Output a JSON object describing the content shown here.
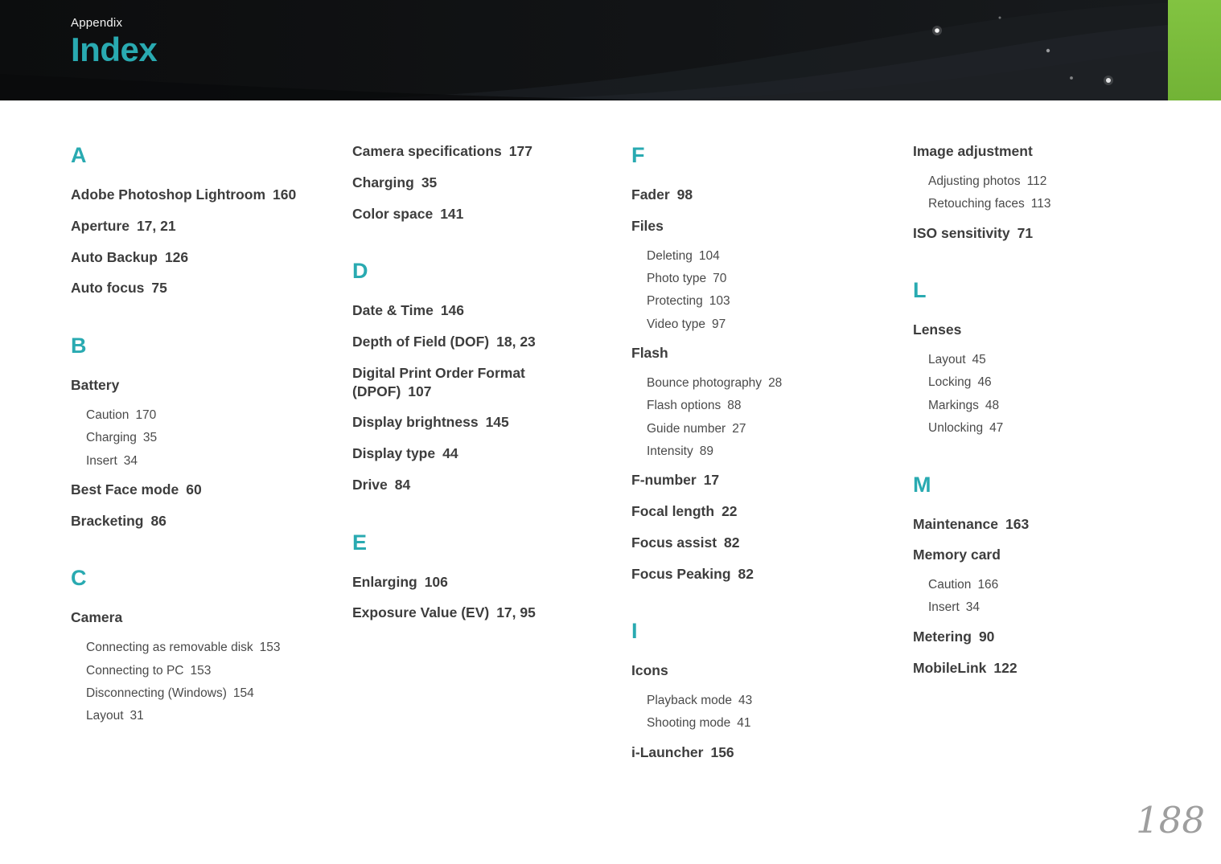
{
  "theme": {
    "accent_color": "#29aab1",
    "green_block_color": "#82c341",
    "header_background": "#101113",
    "bold_entry_color": "#3d3d3d",
    "sub_entry_color": "#4a4a4a",
    "page_number_color": "#9e9e9e"
  },
  "header": {
    "breadcrumb": "Appendix",
    "title": "Index"
  },
  "page_number": "188",
  "columns": [
    {
      "blocks": [
        {
          "letter": "A",
          "entries": [
            {
              "label": "Adobe Photoshop Lightroom",
              "pages": "160",
              "style": "bold"
            },
            {
              "label": "Aperture",
              "pages": "17, 21",
              "style": "bold"
            },
            {
              "label": "Auto Backup",
              "pages": "126",
              "style": "bold"
            },
            {
              "label": "Auto focus",
              "pages": "75",
              "style": "bold"
            }
          ]
        },
        {
          "letter": "B",
          "entries": [
            {
              "label": "Battery",
              "pages": "",
              "style": "bold"
            },
            {
              "label": "Caution",
              "pages": "170",
              "style": "sub"
            },
            {
              "label": "Charging",
              "pages": "35",
              "style": "sub"
            },
            {
              "label": "Insert",
              "pages": "34",
              "style": "sub"
            },
            {
              "label": "Best Face mode",
              "pages": "60",
              "style": "bold"
            },
            {
              "label": "Bracketing",
              "pages": "86",
              "style": "bold"
            }
          ]
        },
        {
          "letter": "C",
          "entries": [
            {
              "label": "Camera",
              "pages": "",
              "style": "bold"
            },
            {
              "label": "Connecting as removable disk",
              "pages": "153",
              "style": "sub"
            },
            {
              "label": "Connecting to PC",
              "pages": "153",
              "style": "sub"
            },
            {
              "label": "Disconnecting (Windows)",
              "pages": "154",
              "style": "sub"
            },
            {
              "label": "Layout",
              "pages": "31",
              "style": "sub"
            }
          ]
        }
      ]
    },
    {
      "blocks": [
        {
          "letter": "",
          "entries": [
            {
              "label": "Camera specifications",
              "pages": "177",
              "style": "bold"
            },
            {
              "label": "Charging",
              "pages": "35",
              "style": "bold"
            },
            {
              "label": "Color space",
              "pages": "141",
              "style": "bold"
            }
          ]
        },
        {
          "letter": "D",
          "entries": [
            {
              "label": "Date & Time",
              "pages": "146",
              "style": "bold"
            },
            {
              "label": "Depth of Field (DOF)",
              "pages": "18, 23",
              "style": "bold"
            },
            {
              "label": "Digital Print Order Format (DPOF)",
              "pages": "107",
              "style": "bold"
            },
            {
              "label": "Display brightness",
              "pages": "145",
              "style": "bold"
            },
            {
              "label": "Display type",
              "pages": "44",
              "style": "bold"
            },
            {
              "label": "Drive",
              "pages": "84",
              "style": "bold"
            }
          ]
        },
        {
          "letter": "E",
          "entries": [
            {
              "label": "Enlarging",
              "pages": "106",
              "style": "bold"
            },
            {
              "label": "Exposure Value (EV)",
              "pages": "17, 95",
              "style": "bold"
            }
          ]
        }
      ]
    },
    {
      "blocks": [
        {
          "letter": "F",
          "entries": [
            {
              "label": "Fader",
              "pages": "98",
              "style": "bold"
            },
            {
              "label": "Files",
              "pages": "",
              "style": "bold"
            },
            {
              "label": "Deleting",
              "pages": "104",
              "style": "sub"
            },
            {
              "label": "Photo type",
              "pages": "70",
              "style": "sub"
            },
            {
              "label": "Protecting",
              "pages": "103",
              "style": "sub"
            },
            {
              "label": "Video type",
              "pages": "97",
              "style": "sub"
            },
            {
              "label": "Flash",
              "pages": "",
              "style": "bold"
            },
            {
              "label": "Bounce photography",
              "pages": "28",
              "style": "sub"
            },
            {
              "label": "Flash options",
              "pages": "88",
              "style": "sub"
            },
            {
              "label": "Guide number",
              "pages": "27",
              "style": "sub"
            },
            {
              "label": "Intensity",
              "pages": "89",
              "style": "sub"
            },
            {
              "label": "F-number",
              "pages": "17",
              "style": "bold"
            },
            {
              "label": "Focal length",
              "pages": "22",
              "style": "bold"
            },
            {
              "label": "Focus assist",
              "pages": "82",
              "style": "bold"
            },
            {
              "label": "Focus Peaking",
              "pages": "82",
              "style": "bold"
            }
          ]
        },
        {
          "letter": "I",
          "entries": [
            {
              "label": "Icons",
              "pages": "",
              "style": "bold"
            },
            {
              "label": "Playback mode",
              "pages": "43",
              "style": "sub"
            },
            {
              "label": "Shooting mode",
              "pages": "41",
              "style": "sub"
            },
            {
              "label": "i-Launcher",
              "pages": "156",
              "style": "bold"
            }
          ]
        }
      ]
    },
    {
      "blocks": [
        {
          "letter": "",
          "entries": [
            {
              "label": "Image adjustment",
              "pages": "",
              "style": "bold"
            },
            {
              "label": "Adjusting photos",
              "pages": "112",
              "style": "sub"
            },
            {
              "label": "Retouching faces",
              "pages": "113",
              "style": "sub"
            },
            {
              "label": "ISO sensitivity",
              "pages": "71",
              "style": "bold"
            }
          ]
        },
        {
          "letter": "L",
          "entries": [
            {
              "label": "Lenses",
              "pages": "",
              "style": "bold"
            },
            {
              "label": "Layout",
              "pages": "45",
              "style": "sub"
            },
            {
              "label": "Locking",
              "pages": "46",
              "style": "sub"
            },
            {
              "label": "Markings",
              "pages": "48",
              "style": "sub"
            },
            {
              "label": "Unlocking",
              "pages": "47",
              "style": "sub"
            }
          ]
        },
        {
          "letter": "M",
          "entries": [
            {
              "label": "Maintenance",
              "pages": "163",
              "style": "bold"
            },
            {
              "label": "Memory card",
              "pages": "",
              "style": "bold"
            },
            {
              "label": "Caution",
              "pages": "166",
              "style": "sub"
            },
            {
              "label": "Insert",
              "pages": "34",
              "style": "sub"
            },
            {
              "label": "Metering",
              "pages": "90",
              "style": "bold"
            },
            {
              "label": "MobileLink",
              "pages": "122",
              "style": "bold"
            }
          ]
        }
      ]
    }
  ]
}
